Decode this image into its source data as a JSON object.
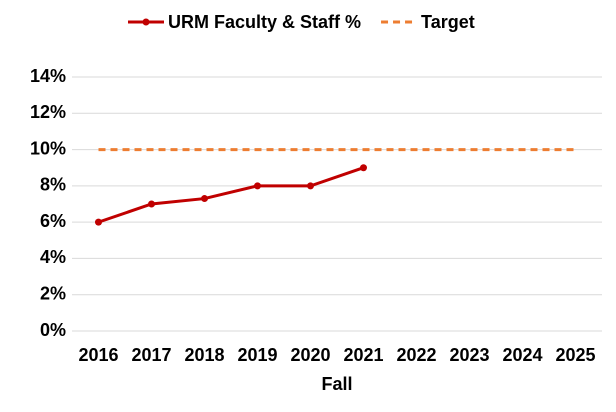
{
  "chart_data": {
    "type": "line",
    "x_label": "Fall",
    "categories": [
      "2016",
      "2017",
      "2018",
      "2019",
      "2020",
      "2021",
      "2022",
      "2023",
      "2024",
      "2025"
    ],
    "series": [
      {
        "name": "URM Faculty & Staff %",
        "color": "#c00000",
        "dashed": false,
        "marker": true,
        "values": [
          6,
          7,
          7.3,
          8,
          8,
          9,
          null,
          null,
          null,
          null
        ]
      },
      {
        "name": "Target",
        "color": "#ed7d31",
        "dashed": true,
        "marker": false,
        "values": [
          10,
          10,
          10,
          10,
          10,
          10,
          10,
          10,
          10,
          10
        ]
      }
    ],
    "ylim": [
      0,
      14
    ],
    "yticks": [
      {
        "value": 0,
        "label": "0%"
      },
      {
        "value": 2,
        "label": "2%"
      },
      {
        "value": 4,
        "label": "4%"
      },
      {
        "value": 6,
        "label": "6%"
      },
      {
        "value": 8,
        "label": "8%"
      },
      {
        "value": 10,
        "label": "10%"
      },
      {
        "value": 12,
        "label": "12%"
      },
      {
        "value": 14,
        "label": "14%"
      }
    ],
    "grid": true,
    "legend": "top"
  }
}
